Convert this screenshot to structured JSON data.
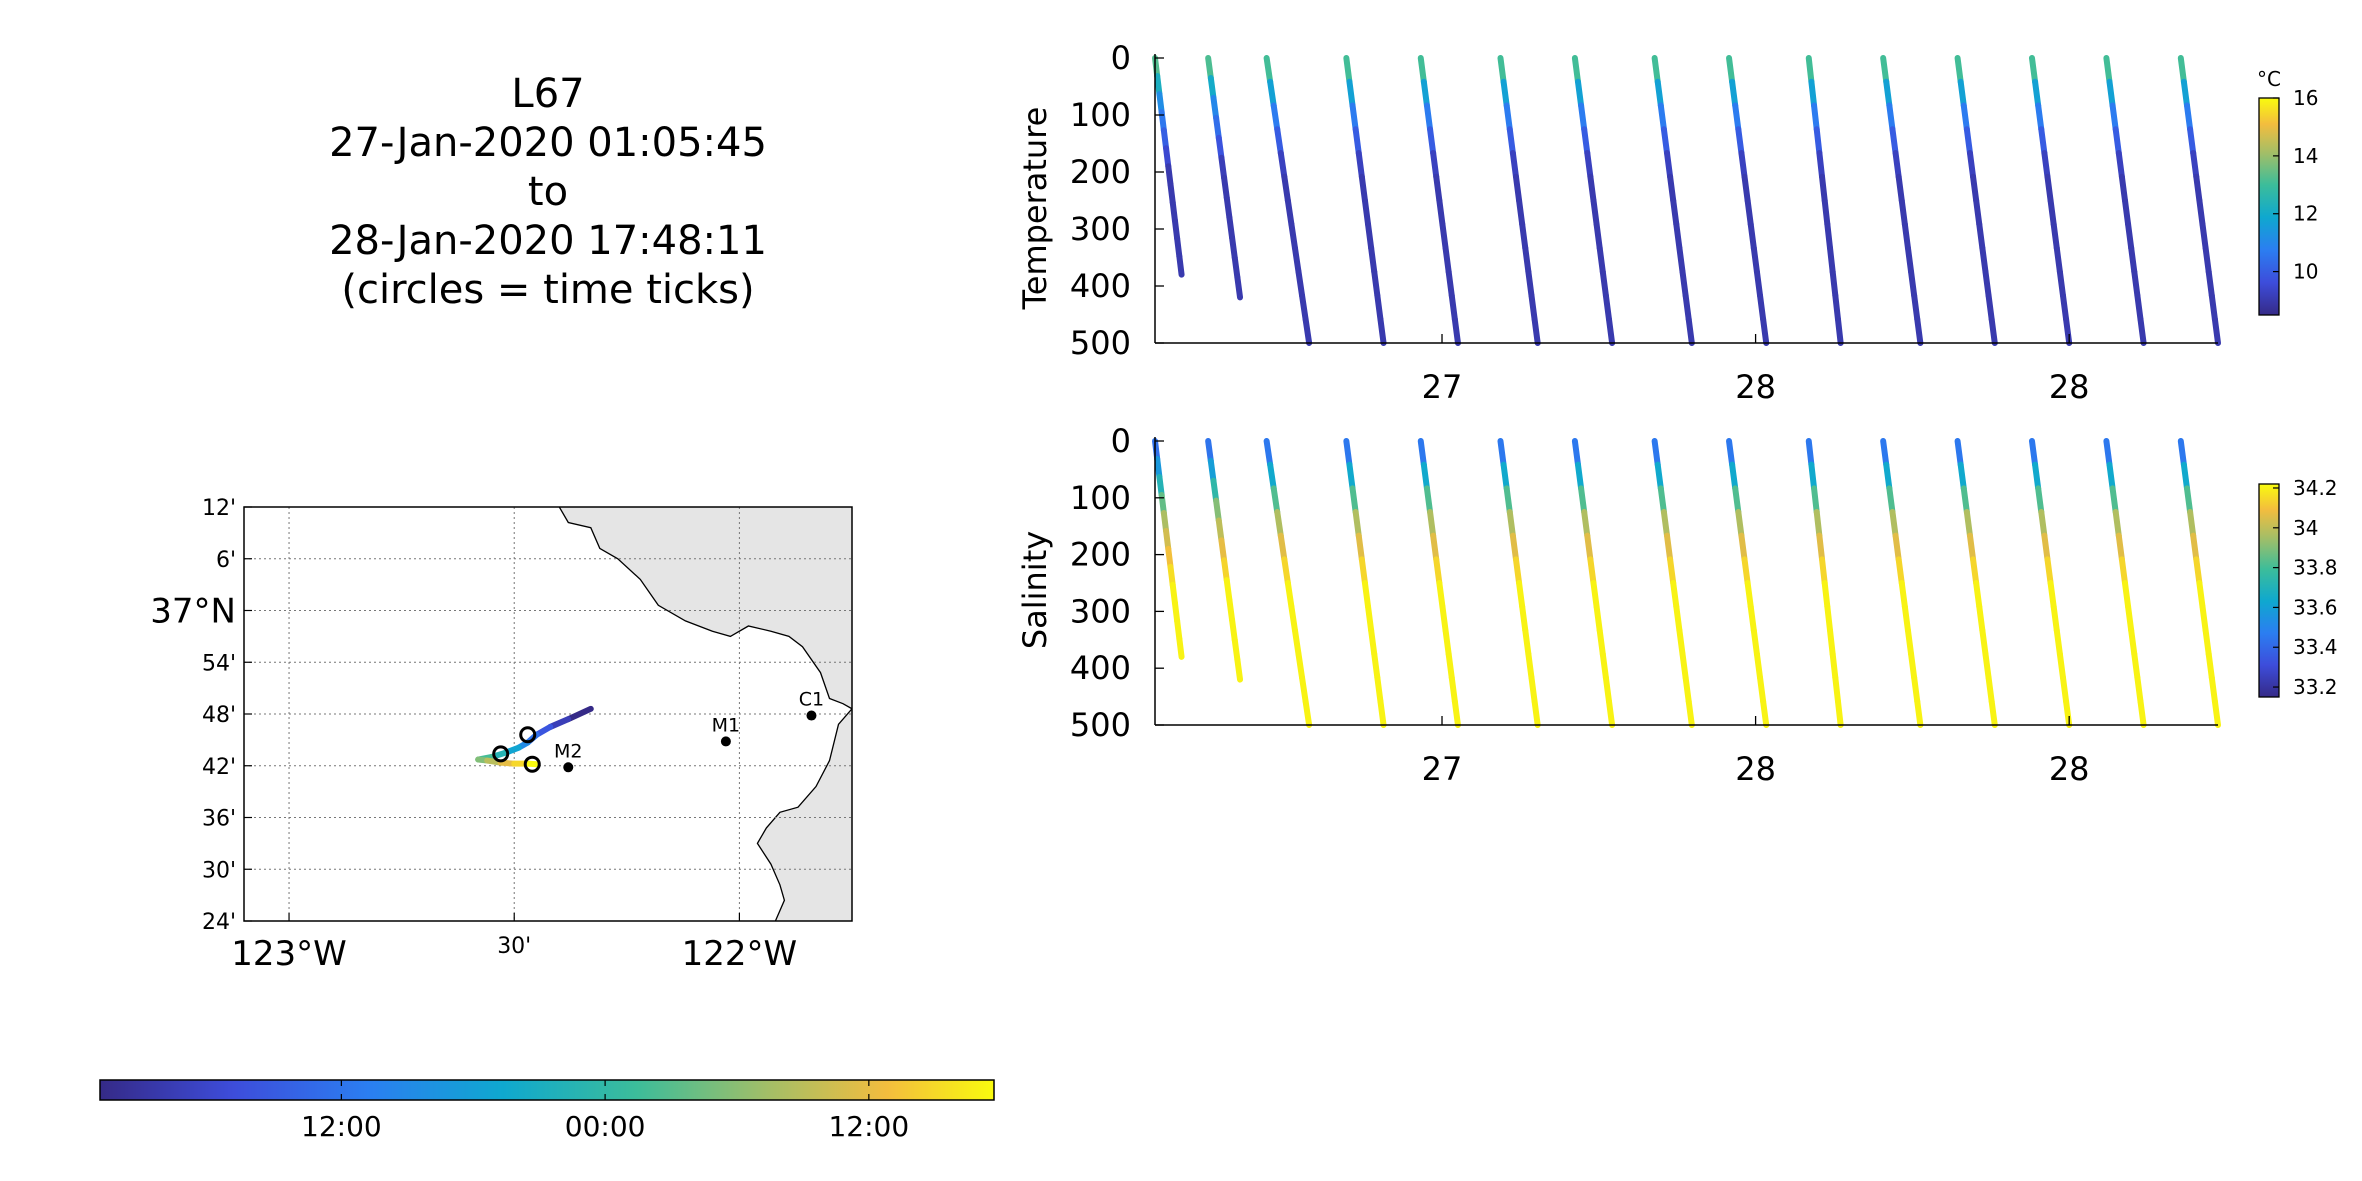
{
  "title_block": {
    "lines": [
      "L67",
      "27-Jan-2020 01:05:45",
      "to",
      "28-Jan-2020 17:48:11",
      "(circles = time ticks)"
    ]
  },
  "map": {
    "lat_tick_labels": [
      "12'",
      "6'",
      "37°N",
      "54'",
      "48'",
      "42'",
      "36'",
      "30'",
      "24'"
    ],
    "lat_tick_values": [
      37.2,
      37.1,
      37.0,
      36.9,
      36.8,
      36.7,
      36.6,
      36.5,
      36.4
    ],
    "lon_tick_labels": [
      "123°W",
      "30'",
      "122°W"
    ],
    "lon_tick_values": [
      -123.0,
      -122.5,
      -122.0
    ],
    "lon_range": [
      -123.1,
      -121.75
    ],
    "lat_range": [
      36.4,
      37.2
    ],
    "grid": true,
    "land_color": "#e5e5e5",
    "coast": [
      [
        -122.4,
        37.2
      ],
      [
        -122.38,
        37.17
      ],
      [
        -122.33,
        37.16
      ],
      [
        -122.31,
        37.12
      ],
      [
        -122.27,
        37.1
      ],
      [
        -122.22,
        37.06
      ],
      [
        -122.18,
        37.01
      ],
      [
        -122.12,
        36.98
      ],
      [
        -122.06,
        36.96
      ],
      [
        -122.02,
        36.95
      ],
      [
        -121.98,
        36.97
      ],
      [
        -121.93,
        36.96
      ],
      [
        -121.89,
        36.95
      ],
      [
        -121.86,
        36.93
      ],
      [
        -121.82,
        36.88
      ],
      [
        -121.8,
        36.83
      ],
      [
        -121.77,
        36.82
      ],
      [
        -121.75,
        36.81
      ],
      [
        -121.78,
        36.78
      ],
      [
        -121.8,
        36.71
      ],
      [
        -121.83,
        36.66
      ],
      [
        -121.87,
        36.62
      ],
      [
        -121.91,
        36.61
      ],
      [
        -121.94,
        36.58
      ],
      [
        -121.96,
        36.55
      ],
      [
        -121.93,
        36.51
      ],
      [
        -121.91,
        36.47
      ],
      [
        -121.9,
        36.44
      ],
      [
        -121.92,
        36.4
      ]
    ],
    "stations": [
      {
        "label": "C1",
        "lon": -121.84,
        "lat": 36.797
      },
      {
        "label": "M1",
        "lon": -122.03,
        "lat": 36.747
      },
      {
        "label": "M2",
        "lon": -122.38,
        "lat": 36.697
      }
    ],
    "track": [
      [
        -122.33,
        36.81
      ],
      [
        -122.38,
        36.79
      ],
      [
        -122.42,
        36.775
      ],
      [
        -122.45,
        36.76
      ],
      [
        -122.47,
        36.745
      ],
      [
        -122.49,
        36.735
      ],
      [
        -122.52,
        36.725
      ],
      [
        -122.55,
        36.717
      ],
      [
        -122.58,
        36.712
      ],
      [
        -122.56,
        36.71
      ],
      [
        -122.53,
        36.706
      ],
      [
        -122.5,
        36.704
      ],
      [
        -122.47,
        36.704
      ],
      [
        -122.45,
        36.703
      ]
    ],
    "time_tick_points": [
      [
        -122.47,
        36.76
      ],
      [
        -122.53,
        36.723
      ],
      [
        -122.46,
        36.703
      ]
    ]
  },
  "time_colorbar": {
    "tick_labels": [
      "12:00",
      "00:00",
      "12:00"
    ],
    "tick_fractions": [
      0.27,
      0.565,
      0.86
    ]
  },
  "chart_data": [
    {
      "type": "scatter",
      "ylabel": "Temperature",
      "ylim": [
        0,
        500
      ],
      "y_inverted": true,
      "y_tick_labels": [
        "0",
        "100",
        "200",
        "300",
        "400",
        "500"
      ],
      "x_tick_labels": [
        "27",
        "28",
        "28"
      ],
      "x_tick_fractions": [
        0.27,
        0.565,
        0.86
      ],
      "profiles": [
        {
          "x_top": 0.0,
          "x_bottom": 0.025,
          "max_depth": 380
        },
        {
          "x_top": 0.05,
          "x_bottom": 0.08,
          "max_depth": 420
        },
        {
          "x_top": 0.105,
          "x_bottom": 0.145,
          "max_depth": 500
        },
        {
          "x_top": 0.18,
          "x_bottom": 0.215,
          "max_depth": 500
        },
        {
          "x_top": 0.25,
          "x_bottom": 0.285,
          "max_depth": 500
        },
        {
          "x_top": 0.325,
          "x_bottom": 0.36,
          "max_depth": 500
        },
        {
          "x_top": 0.395,
          "x_bottom": 0.43,
          "max_depth": 500
        },
        {
          "x_top": 0.47,
          "x_bottom": 0.505,
          "max_depth": 500
        },
        {
          "x_top": 0.54,
          "x_bottom": 0.575,
          "max_depth": 500
        },
        {
          "x_top": 0.615,
          "x_bottom": 0.645,
          "max_depth": 500
        },
        {
          "x_top": 0.685,
          "x_bottom": 0.72,
          "max_depth": 500
        },
        {
          "x_top": 0.755,
          "x_bottom": 0.79,
          "max_depth": 500
        },
        {
          "x_top": 0.825,
          "x_bottom": 0.86,
          "max_depth": 500
        },
        {
          "x_top": 0.895,
          "x_bottom": 0.93,
          "max_depth": 500
        },
        {
          "x_top": 0.965,
          "x_bottom": 1.0,
          "max_depth": 500
        }
      ],
      "colorbar": {
        "unit": "°C",
        "range": [
          8.5,
          16
        ],
        "tick_labels": [
          "16",
          "14",
          "12",
          "10"
        ],
        "tick_values": [
          16,
          14,
          12,
          10
        ]
      },
      "profile_values": {
        "surface": 13.5,
        "mid": 11,
        "deep": 9,
        "mid_depth": 80,
        "deep_depth": 200
      }
    },
    {
      "type": "scatter",
      "ylabel": "Salinity",
      "ylim": [
        0,
        500
      ],
      "y_inverted": true,
      "y_tick_labels": [
        "0",
        "100",
        "200",
        "300",
        "400",
        "500"
      ],
      "x_tick_labels": [
        "27",
        "28",
        "28"
      ],
      "x_tick_fractions": [
        0.27,
        0.565,
        0.86
      ],
      "profiles": [
        {
          "x_top": 0.0,
          "x_bottom": 0.025,
          "max_depth": 380
        },
        {
          "x_top": 0.05,
          "x_bottom": 0.08,
          "max_depth": 420
        },
        {
          "x_top": 0.105,
          "x_bottom": 0.145,
          "max_depth": 500
        },
        {
          "x_top": 0.18,
          "x_bottom": 0.215,
          "max_depth": 500
        },
        {
          "x_top": 0.25,
          "x_bottom": 0.285,
          "max_depth": 500
        },
        {
          "x_top": 0.325,
          "x_bottom": 0.36,
          "max_depth": 500
        },
        {
          "x_top": 0.395,
          "x_bottom": 0.43,
          "max_depth": 500
        },
        {
          "x_top": 0.47,
          "x_bottom": 0.505,
          "max_depth": 500
        },
        {
          "x_top": 0.54,
          "x_bottom": 0.575,
          "max_depth": 500
        },
        {
          "x_top": 0.615,
          "x_bottom": 0.645,
          "max_depth": 500
        },
        {
          "x_top": 0.685,
          "x_bottom": 0.72,
          "max_depth": 500
        },
        {
          "x_top": 0.755,
          "x_bottom": 0.79,
          "max_depth": 500
        },
        {
          "x_top": 0.825,
          "x_bottom": 0.86,
          "max_depth": 500
        },
        {
          "x_top": 0.895,
          "x_bottom": 0.93,
          "max_depth": 500
        },
        {
          "x_top": 0.965,
          "x_bottom": 1.0,
          "max_depth": 500
        }
      ],
      "colorbar": {
        "unit": "",
        "range": [
          33.15,
          34.22
        ],
        "tick_labels": [
          "34.2",
          "34",
          "33.8",
          "33.6",
          "33.4",
          "33.2"
        ],
        "tick_values": [
          34.2,
          34.0,
          33.8,
          33.6,
          33.4,
          33.2
        ]
      },
      "profile_values": {
        "surface": 33.35,
        "mid": 33.9,
        "deep": 34.2,
        "mid_depth": 130,
        "deep_depth": 260
      }
    }
  ]
}
